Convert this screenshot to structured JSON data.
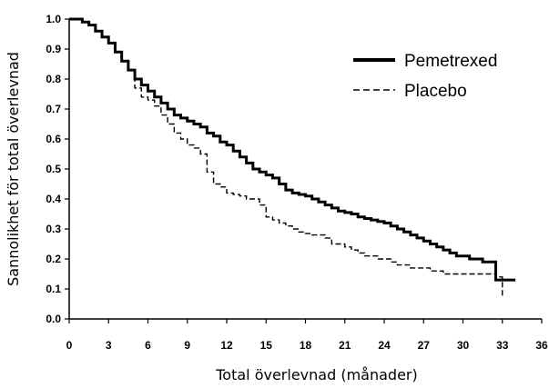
{
  "chart_data": {
    "type": "line",
    "xlabel": "Total överlevnad (månader)",
    "ylabel": "Sannolikhet för total överlevnad",
    "xlim": [
      0,
      36
    ],
    "ylim": [
      0,
      1.0
    ],
    "xticks": [
      "0",
      "3",
      "6",
      "9",
      "12",
      "15",
      "18",
      "21",
      "24",
      "27",
      "30",
      "33",
      "36"
    ],
    "yticks": [
      "0.0",
      "0.1",
      "0.2",
      "0.3",
      "0.4",
      "0.5",
      "0.6",
      "0.7",
      "0.8",
      "0.9",
      "1.0"
    ],
    "grid": false,
    "legend_position": "top-right",
    "series": [
      {
        "name": "Pemetrexed",
        "style": "solid",
        "color": "#000000",
        "x": [
          0,
          0.5,
          1,
          1.5,
          2,
          2.5,
          3,
          3.5,
          4,
          4.5,
          5,
          5.5,
          6,
          6.5,
          7,
          7.5,
          8,
          8.5,
          9,
          9.5,
          10,
          10.5,
          11,
          11.5,
          12,
          12.5,
          13,
          13.5,
          14,
          14.5,
          15,
          15.5,
          16,
          16.5,
          17,
          17.5,
          18,
          18.5,
          19,
          19.5,
          20,
          20.5,
          21,
          21.5,
          22,
          22.5,
          23,
          23.5,
          24,
          24.5,
          25,
          25.5,
          26,
          26.5,
          27,
          27.5,
          28,
          28.5,
          29,
          29.5,
          30,
          30.5,
          31,
          31.5,
          32,
          32.5,
          33,
          33.5,
          34
        ],
        "y": [
          1.0,
          1.0,
          0.99,
          0.98,
          0.96,
          0.94,
          0.92,
          0.89,
          0.86,
          0.83,
          0.8,
          0.78,
          0.76,
          0.74,
          0.72,
          0.7,
          0.68,
          0.67,
          0.66,
          0.65,
          0.64,
          0.62,
          0.61,
          0.59,
          0.58,
          0.56,
          0.54,
          0.52,
          0.5,
          0.49,
          0.48,
          0.47,
          0.45,
          0.43,
          0.42,
          0.415,
          0.41,
          0.4,
          0.39,
          0.38,
          0.37,
          0.36,
          0.355,
          0.35,
          0.34,
          0.335,
          0.33,
          0.325,
          0.32,
          0.31,
          0.3,
          0.29,
          0.28,
          0.27,
          0.26,
          0.25,
          0.24,
          0.23,
          0.22,
          0.21,
          0.21,
          0.2,
          0.2,
          0.19,
          0.19,
          0.13,
          0.13,
          0.13,
          0.13
        ]
      },
      {
        "name": "Placebo",
        "style": "dashed",
        "color": "#000000",
        "x": [
          0,
          0.5,
          1,
          1.5,
          2,
          2.5,
          3,
          3.5,
          4,
          4.5,
          5,
          5.5,
          6,
          6.5,
          7,
          7.5,
          8,
          8.5,
          9,
          9.5,
          10,
          10.5,
          11,
          11.5,
          12,
          12.5,
          13,
          13.5,
          14,
          14.5,
          15,
          15.5,
          16,
          16.5,
          17,
          17.5,
          18,
          18.5,
          19,
          19.5,
          20,
          20.5,
          21,
          21.5,
          22,
          22.5,
          23,
          23.5,
          24,
          24.5,
          25,
          25.5,
          26,
          26.5,
          27,
          27.5,
          28,
          28.5,
          29,
          29.5,
          30,
          30.5,
          31,
          31.5,
          32,
          32.5,
          33
        ],
        "y": [
          1.0,
          1.0,
          0.99,
          0.98,
          0.96,
          0.94,
          0.92,
          0.89,
          0.86,
          0.83,
          0.77,
          0.74,
          0.73,
          0.71,
          0.68,
          0.65,
          0.62,
          0.6,
          0.58,
          0.57,
          0.55,
          0.49,
          0.45,
          0.44,
          0.42,
          0.415,
          0.41,
          0.4,
          0.4,
          0.38,
          0.34,
          0.33,
          0.32,
          0.31,
          0.3,
          0.29,
          0.285,
          0.28,
          0.28,
          0.27,
          0.25,
          0.25,
          0.24,
          0.23,
          0.22,
          0.21,
          0.21,
          0.2,
          0.2,
          0.19,
          0.18,
          0.18,
          0.17,
          0.17,
          0.17,
          0.16,
          0.16,
          0.15,
          0.15,
          0.15,
          0.15,
          0.15,
          0.15,
          0.15,
          0.15,
          0.14,
          0.07
        ]
      }
    ]
  }
}
